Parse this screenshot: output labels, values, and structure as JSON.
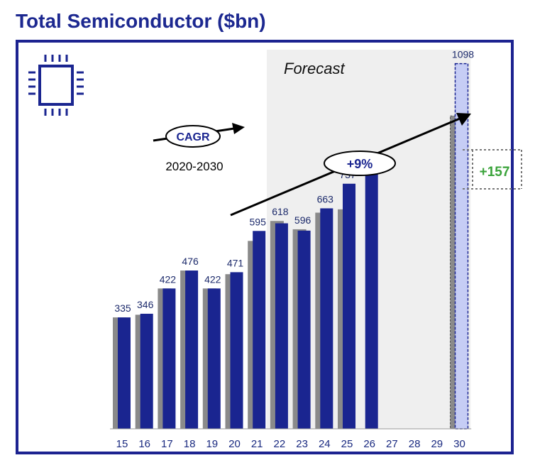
{
  "title": "Total Semiconductor ($bn)",
  "forecast_label": "Forecast",
  "cagr": {
    "label": "CAGR",
    "period": "2020-2030",
    "rate": "+9%"
  },
  "delta_label": "+157",
  "colors": {
    "navy": "#1a2590",
    "grey": "#8a8a8a",
    "green": "#3aa33a",
    "forecast_bg": "#efefef",
    "value_text": "#1c2a6b",
    "light_bar": "#c6cdf5"
  },
  "chart_data": {
    "type": "bar",
    "title": "Total Semiconductor ($bn)",
    "categories": [
      "15",
      "16",
      "17",
      "18",
      "19",
      "20",
      "21",
      "22",
      "23",
      "24",
      "25",
      "26",
      "27",
      "28",
      "29",
      "30"
    ],
    "series": [
      {
        "values": [
          335,
          346,
          422,
          476,
          422,
          471,
          595,
          618,
          596,
          663,
          737,
          782,
          null,
          null,
          null,
          1098
        ]
      },
      {
        "values": [
          335,
          343,
          422,
          476,
          422,
          465,
          565,
          625,
          600,
          650,
          660,
          null,
          null,
          null,
          null,
          941
        ]
      }
    ],
    "value_labels": [
      "335",
      "346",
      "422",
      "476",
      "422",
      "471",
      "595",
      "618",
      "596",
      "663",
      "737",
      "782",
      "",
      "",
      "",
      "1098"
    ],
    "ylim": [
      0,
      1140
    ],
    "forecast_start": "22",
    "legend": "none",
    "grid": false
  }
}
